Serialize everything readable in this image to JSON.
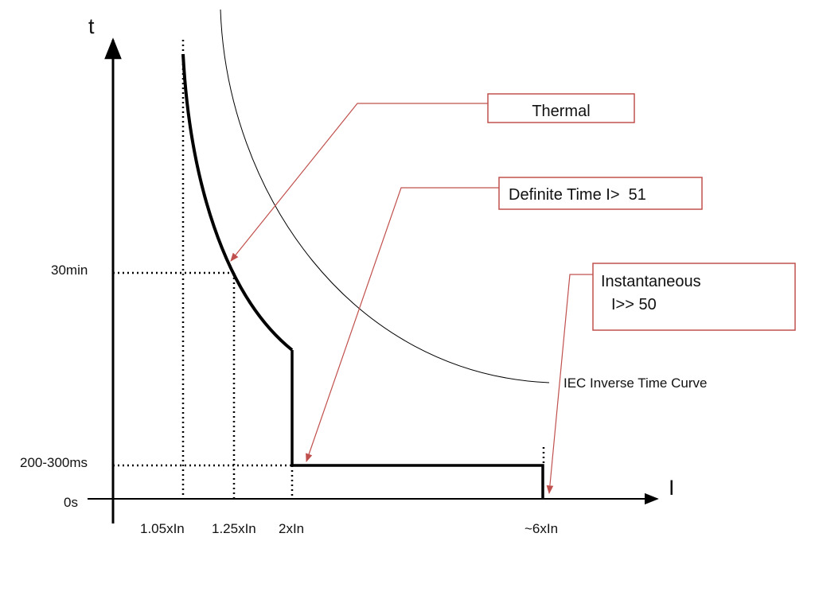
{
  "axes": {
    "y_label": "t",
    "x_label": "I"
  },
  "y_ticks": {
    "t30min": "30min",
    "t200_300ms": "200-300ms",
    "t0s": "0s"
  },
  "x_ticks": {
    "x105": "1.05xIn",
    "x125": "1.25xIn",
    "x2": "2xIn",
    "x6": "~6xIn"
  },
  "callouts": {
    "thermal": "Thermal",
    "definite_time": "Definite Time I>  51",
    "instantaneous_line1": "Instantaneous",
    "instantaneous_line2": "I>> 50"
  },
  "curve_label": "IEC Inverse Time Curve",
  "colors": {
    "callout": "#c0504d",
    "curve": "#000000"
  }
}
